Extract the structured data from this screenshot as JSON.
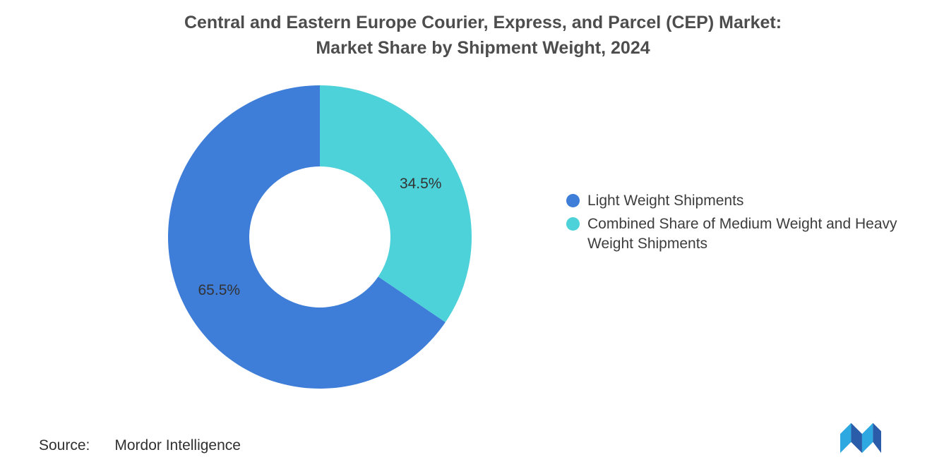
{
  "title": {
    "line1": "Central and Eastern Europe Courier, Express, and Parcel (CEP) Market:",
    "line2": "Market Share by Shipment Weight, 2024"
  },
  "chart_data": {
    "type": "pie",
    "donut": true,
    "title": "Central and Eastern Europe Courier, Express, and Parcel (CEP) Market: Market Share by Shipment Weight, 2024",
    "series": [
      {
        "name": "Light Weight Shipments",
        "value": 65.5,
        "color": "#3E7DD8"
      },
      {
        "name": "Combined Share of Medium Weight and Heavy Weight Shipments",
        "value": 34.5,
        "color": "#4CD2D8"
      }
    ],
    "start_angle_deg": -90,
    "direction": "counterclockwise",
    "inner_radius_ratio": 0.465,
    "labels_color": "#333333",
    "legend_position": "right"
  },
  "legend": {
    "items": [
      {
        "label": "Light Weight Shipments",
        "color": "#3E7DD8"
      },
      {
        "label": "Combined Share of Medium Weight and Heavy Weight Shipments",
        "color": "#4CD2D8"
      }
    ]
  },
  "source": {
    "label": "Source:",
    "value": "Mordor Intelligence"
  },
  "logo": {
    "name": "mordor-intelligence-logo",
    "colors": {
      "light": "#2EA8E0",
      "dark": "#2A5CAA"
    }
  }
}
